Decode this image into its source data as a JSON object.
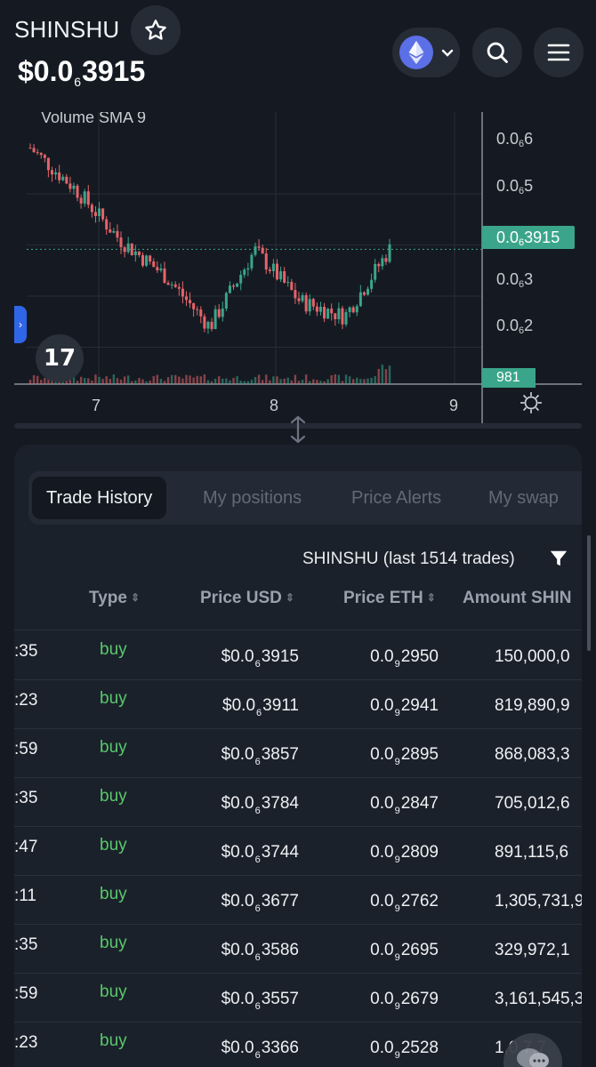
{
  "header": {
    "token_name": "SHINSHU",
    "price_prefix": "$0.0",
    "price_sub": "6",
    "price_rest": "3915"
  },
  "chart": {
    "indicator_label": "Volume SMA 9",
    "y_ticks": [
      {
        "pre": "0.0",
        "sub": "6",
        "post": "6"
      },
      {
        "pre": "0.0",
        "sub": "6",
        "post": "5"
      },
      {
        "pre": "0.0",
        "sub": "6",
        "post": "3"
      },
      {
        "pre": "0.0",
        "sub": "6",
        "post": "2"
      }
    ],
    "last_price_tag": {
      "pre": "0.0",
      "sub": "6",
      "post": "3915"
    },
    "volume_tag": "981",
    "x_ticks": [
      "7",
      "8",
      "9"
    ],
    "logo_text": "17",
    "colors": {
      "up": "#3aa58a",
      "down": "#e5646a",
      "grid": "#262c35"
    }
  },
  "chart_data": {
    "type": "line",
    "title": "",
    "xlabel": "",
    "ylabel": "",
    "x": [
      "7",
      "",
      "",
      "",
      "8",
      "",
      "",
      "",
      "9"
    ],
    "series": [
      {
        "name": "",
        "values": [
          5.9,
          5.1,
          4.1,
          3.4,
          2.4,
          3.9,
          2.9,
          2.6,
          3.915
        ]
      }
    ],
    "ylim": [
      1.8,
      6.6
    ],
    "grid": true
  },
  "panel": {
    "tabs": [
      "Trade History",
      "My positions",
      "Price Alerts",
      "My swap"
    ],
    "active_tab": "Trade History",
    "filter_text": "SHINSHU (last 1514 trades)",
    "columns": {
      "type": "Type",
      "price_usd": "Price USD",
      "price_eth": "Price ETH",
      "amount": "Amount SHIN"
    },
    "sort_glyph": "⌃⌄",
    "rows": [
      {
        "time": ":35",
        "type": "buy",
        "usd_pre": "$0.0",
        "usd_sub": "6",
        "usd_post": "3915",
        "eth_pre": "0.0",
        "eth_sub": "9",
        "eth_post": "2950",
        "amount": "150,000,0"
      },
      {
        "time": ":23",
        "type": "buy",
        "usd_pre": "$0.0",
        "usd_sub": "6",
        "usd_post": "3911",
        "eth_pre": "0.0",
        "eth_sub": "9",
        "eth_post": "2941",
        "amount": "819,890,9"
      },
      {
        "time": ":59",
        "type": "buy",
        "usd_pre": "$0.0",
        "usd_sub": "6",
        "usd_post": "3857",
        "eth_pre": "0.0",
        "eth_sub": "9",
        "eth_post": "2895",
        "amount": "868,083,3"
      },
      {
        "time": ":35",
        "type": "buy",
        "usd_pre": "$0.0",
        "usd_sub": "6",
        "usd_post": "3784",
        "eth_pre": "0.0",
        "eth_sub": "9",
        "eth_post": "2847",
        "amount": "705,012,6"
      },
      {
        "time": ":47",
        "type": "buy",
        "usd_pre": "$0.0",
        "usd_sub": "6",
        "usd_post": "3744",
        "eth_pre": "0.0",
        "eth_sub": "9",
        "eth_post": "2809",
        "amount": "891,115,6"
      },
      {
        "time": ":11",
        "type": "buy",
        "usd_pre": "$0.0",
        "usd_sub": "6",
        "usd_post": "3677",
        "eth_pre": "0.0",
        "eth_sub": "9",
        "eth_post": "2762",
        "amount": "1,305,731,9"
      },
      {
        "time": ":35",
        "type": "buy",
        "usd_pre": "$0.0",
        "usd_sub": "6",
        "usd_post": "3586",
        "eth_pre": "0.0",
        "eth_sub": "9",
        "eth_post": "2695",
        "amount": "329,972,1"
      },
      {
        "time": ":59",
        "type": "buy",
        "usd_pre": "$0.0",
        "usd_sub": "6",
        "usd_post": "3557",
        "eth_pre": "0.0",
        "eth_sub": "9",
        "eth_post": "2679",
        "amount": "3,161,545,3"
      },
      {
        "time": ":23",
        "type": "buy",
        "usd_pre": "$0.0",
        "usd_sub": "6",
        "usd_post": "3366",
        "eth_pre": "0.0",
        "eth_sub": "9",
        "eth_post": "2528",
        "amount": "1,0 7,7"
      }
    ]
  },
  "icons": [
    "star-icon",
    "ethereum-icon",
    "chevron-down-icon",
    "search-icon",
    "menu-icon",
    "filter-icon",
    "gear-icon",
    "chat-icon",
    "resize-icon"
  ]
}
